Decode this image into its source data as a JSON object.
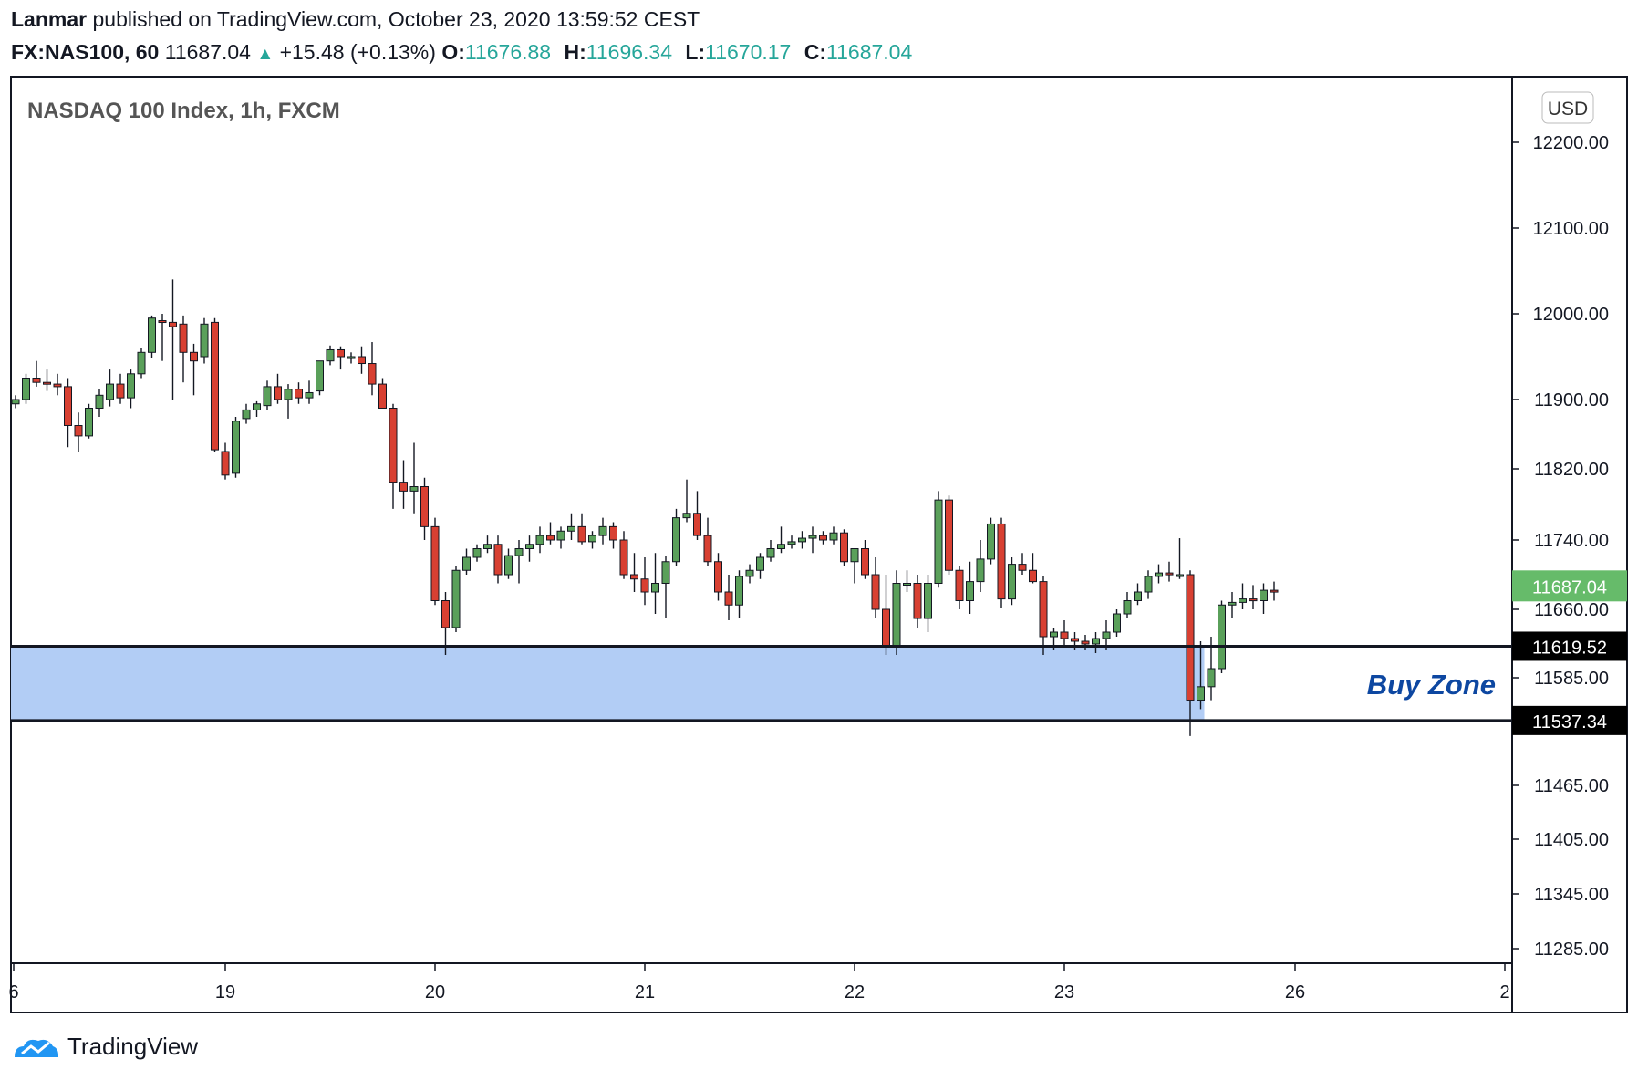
{
  "header": {
    "author": "Lanmar",
    "published_text": "published on TradingView.com, October 23, 2020 13:59:52 CEST",
    "symbol": "FX:NAS100, 60",
    "last": "11687.04",
    "change": "+15.48 (+0.13%)",
    "open_label": "O:",
    "open": "11676.88",
    "high_label": "H:",
    "high": "11696.34",
    "low_label": "L:",
    "low": "11670.17",
    "close_label": "C:",
    "close": "11687.04"
  },
  "footer": {
    "brand": "TradingView"
  },
  "colors": {
    "up": "#26a69a",
    "candle_up": "#5aa05a",
    "candle_down": "#d84032",
    "zone": "#b2cdf5",
    "zone_text": "#0d47a1",
    "last_price_bg": "#66bb6a"
  },
  "chart_data": {
    "type": "candlestick",
    "title": "NASDAQ 100 Index, 1h, FXCM",
    "currency": "USD",
    "y_ticks": [
      12200,
      12100,
      12000,
      11900,
      11820,
      11740,
      11660,
      11585,
      11465,
      11405,
      11345,
      11285
    ],
    "y_tick_labels": [
      "12200.00",
      "12100.00",
      "12000.00",
      "11900.00",
      "11820.00",
      "11740.00",
      "11660.00",
      "11585.00",
      "11465.00",
      "11405.00",
      "11345.00",
      "11285.00"
    ],
    "x_ticks": [
      {
        "label": "6",
        "bar": -1
      },
      {
        "label": "19",
        "bar": 20
      },
      {
        "label": "20",
        "bar": 40
      },
      {
        "label": "21",
        "bar": 60
      },
      {
        "label": "22",
        "bar": 80
      },
      {
        "label": "23",
        "bar": 100
      },
      {
        "label": "26",
        "bar": 122
      },
      {
        "label": "2",
        "bar": 142
      }
    ],
    "last_price": {
      "value": 11687.04,
      "label": "11687.04"
    },
    "price_lines": [
      {
        "value": 11619.52,
        "label": "11619.52"
      },
      {
        "value": 11537.34,
        "label": "11537.34"
      }
    ],
    "zone": {
      "label": "Buy Zone",
      "top": 11619.52,
      "bottom": 11537.34,
      "bar_end": 113
    },
    "candles": [
      [
        11895,
        11905,
        11890,
        11900
      ],
      [
        11900,
        11930,
        11895,
        11925
      ],
      [
        11925,
        11945,
        11915,
        11920
      ],
      [
        11920,
        11935,
        11910,
        11918
      ],
      [
        11918,
        11930,
        11905,
        11915
      ],
      [
        11915,
        11925,
        11845,
        11870
      ],
      [
        11870,
        11885,
        11840,
        11858
      ],
      [
        11858,
        11895,
        11855,
        11890
      ],
      [
        11890,
        11912,
        11880,
        11905
      ],
      [
        11900,
        11935,
        11892,
        11918
      ],
      [
        11918,
        11930,
        11895,
        11902
      ],
      [
        11902,
        11935,
        11890,
        11930
      ],
      [
        11930,
        11960,
        11925,
        11955
      ],
      [
        11955,
        11998,
        11948,
        11995
      ],
      [
        11992,
        12000,
        11945,
        11990
      ],
      [
        11990,
        12040,
        11900,
        11985
      ],
      [
        11988,
        11998,
        11920,
        11955
      ],
      [
        11955,
        11965,
        11905,
        11945
      ],
      [
        11950,
        11995,
        11942,
        11988
      ],
      [
        11990,
        11995,
        11840,
        11842
      ],
      [
        11840,
        11850,
        11808,
        11813
      ],
      [
        11815,
        11880,
        11810,
        11875
      ],
      [
        11878,
        11895,
        11872,
        11888
      ],
      [
        11888,
        11898,
        11880,
        11895
      ],
      [
        11893,
        11922,
        11888,
        11915
      ],
      [
        11915,
        11930,
        11895,
        11900
      ],
      [
        11900,
        11918,
        11878,
        11912
      ],
      [
        11912,
        11920,
        11895,
        11902
      ],
      [
        11902,
        11922,
        11895,
        11908
      ],
      [
        11910,
        11945,
        11905,
        11945
      ],
      [
        11945,
        11963,
        11940,
        11958
      ],
      [
        11958,
        11962,
        11935,
        11950
      ],
      [
        11950,
        11955,
        11942,
        11950
      ],
      [
        11950,
        11962,
        11930,
        11942
      ],
      [
        11942,
        11967,
        11905,
        11918
      ],
      [
        11918,
        11925,
        11890,
        11890
      ],
      [
        11890,
        11895,
        11775,
        11805
      ],
      [
        11805,
        11830,
        11775,
        11795
      ],
      [
        11795,
        11850,
        11770,
        11800
      ],
      [
        11800,
        11810,
        11740,
        11755
      ],
      [
        11755,
        11765,
        11665,
        11670
      ],
      [
        11670,
        11680,
        11610,
        11640
      ],
      [
        11640,
        11710,
        11635,
        11705
      ],
      [
        11705,
        11730,
        11700,
        11720
      ],
      [
        11720,
        11735,
        11715,
        11730
      ],
      [
        11730,
        11745,
        11725,
        11735
      ],
      [
        11735,
        11745,
        11690,
        11700
      ],
      [
        11700,
        11730,
        11695,
        11722
      ],
      [
        11722,
        11740,
        11690,
        11730
      ],
      [
        11730,
        11745,
        11715,
        11735
      ],
      [
        11735,
        11755,
        11725,
        11745
      ],
      [
        11745,
        11760,
        11735,
        11740
      ],
      [
        11740,
        11755,
        11730,
        11750
      ],
      [
        11750,
        11770,
        11740,
        11755
      ],
      [
        11755,
        11770,
        11735,
        11738
      ],
      [
        11738,
        11750,
        11730,
        11745
      ],
      [
        11745,
        11765,
        11735,
        11755
      ],
      [
        11755,
        11760,
        11730,
        11740
      ],
      [
        11740,
        11750,
        11695,
        11700
      ],
      [
        11700,
        11725,
        11680,
        11695
      ],
      [
        11695,
        11720,
        11665,
        11680
      ],
      [
        11680,
        11725,
        11655,
        11690
      ],
      [
        11690,
        11722,
        11650,
        11715
      ],
      [
        11715,
        11775,
        11710,
        11765
      ],
      [
        11765,
        11808,
        11760,
        11770
      ],
      [
        11770,
        11795,
        11740,
        11745
      ],
      [
        11745,
        11765,
        11710,
        11715
      ],
      [
        11715,
        11725,
        11670,
        11680
      ],
      [
        11680,
        11700,
        11648,
        11665
      ],
      [
        11665,
        11705,
        11650,
        11698
      ],
      [
        11698,
        11712,
        11690,
        11705
      ],
      [
        11705,
        11725,
        11695,
        11720
      ],
      [
        11720,
        11740,
        11715,
        11730
      ],
      [
        11730,
        11755,
        11725,
        11735
      ],
      [
        11735,
        11745,
        11730,
        11738
      ],
      [
        11738,
        11750,
        11730,
        11742
      ],
      [
        11742,
        11755,
        11725,
        11745
      ],
      [
        11745,
        11750,
        11735,
        11740
      ],
      [
        11740,
        11755,
        11735,
        11748
      ],
      [
        11748,
        11752,
        11710,
        11715
      ],
      [
        11715,
        11725,
        11690,
        11730
      ],
      [
        11730,
        11740,
        11695,
        11700
      ],
      [
        11700,
        11720,
        11650,
        11660
      ],
      [
        11660,
        11700,
        11610,
        11620
      ],
      [
        11620,
        11705,
        11610,
        11690
      ],
      [
        11690,
        11705,
        11680,
        11690
      ],
      [
        11690,
        11700,
        11640,
        11650
      ],
      [
        11650,
        11700,
        11635,
        11690
      ],
      [
        11690,
        11795,
        11685,
        11785
      ],
      [
        11785,
        11790,
        11700,
        11705
      ],
      [
        11705,
        11710,
        11660,
        11670
      ],
      [
        11670,
        11715,
        11655,
        11692
      ],
      [
        11692,
        11740,
        11680,
        11718
      ],
      [
        11718,
        11765,
        11712,
        11758
      ],
      [
        11758,
        11765,
        11662,
        11672
      ],
      [
        11672,
        11720,
        11665,
        11712
      ],
      [
        11712,
        11725,
        11700,
        11705
      ],
      [
        11705,
        11725,
        11690,
        11692
      ],
      [
        11692,
        11698,
        11610,
        11630
      ],
      [
        11630,
        11640,
        11615,
        11635
      ],
      [
        11635,
        11648,
        11620,
        11628
      ],
      [
        11628,
        11635,
        11615,
        11625
      ],
      [
        11625,
        11632,
        11615,
        11622
      ],
      [
        11622,
        11635,
        11612,
        11628
      ],
      [
        11628,
        11648,
        11615,
        11635
      ],
      [
        11635,
        11660,
        11630,
        11655
      ],
      [
        11655,
        11680,
        11650,
        11670
      ],
      [
        11670,
        11690,
        11665,
        11680
      ],
      [
        11680,
        11705,
        11672,
        11698
      ],
      [
        11698,
        11712,
        11690,
        11702
      ],
      [
        11702,
        11715,
        11692,
        11700
      ],
      [
        11700,
        11742,
        11695,
        11700
      ],
      [
        11700,
        11705,
        11520,
        11560
      ],
      [
        11560,
        11625,
        11550,
        11575
      ],
      [
        11575,
        11630,
        11560,
        11595
      ],
      [
        11595,
        11670,
        11590,
        11665
      ],
      [
        11665,
        11680,
        11650,
        11668
      ],
      [
        11668,
        11690,
        11660,
        11672
      ],
      [
        11672,
        11688,
        11660,
        11670
      ],
      [
        11670,
        11690,
        11655,
        11682
      ],
      [
        11682,
        11692,
        11670,
        11680
      ]
    ]
  }
}
